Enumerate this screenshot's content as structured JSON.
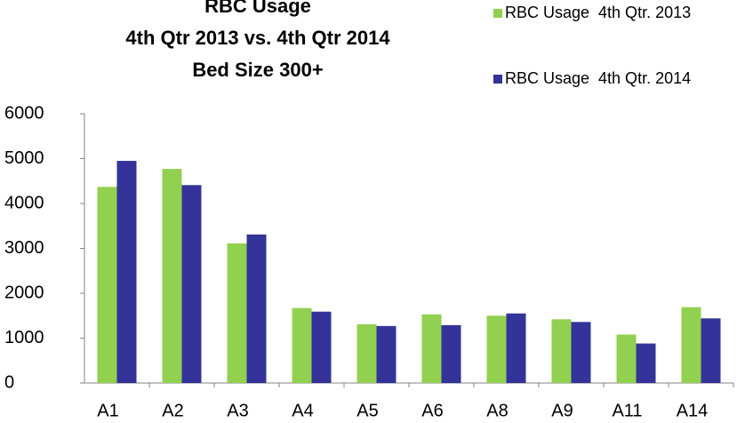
{
  "chart_data": {
    "type": "bar",
    "title": [
      "RBC Usage",
      "4th Qtr 2013 vs. 4th Qtr 2014",
      "Bed Size 300+"
    ],
    "categories": [
      "A1",
      "A2",
      "A3",
      "A4",
      "A5",
      "A6",
      "A8",
      "A9",
      "A11",
      "A14"
    ],
    "series": [
      {
        "name": "RBC Usage  4th Qtr. 2013",
        "color": "#92d050",
        "values": [
          4370,
          4770,
          3110,
          1670,
          1310,
          1530,
          1500,
          1420,
          1080,
          1690
        ]
      },
      {
        "name": "RBC Usage  4th Qtr. 2014",
        "color": "#333399",
        "values": [
          4950,
          4410,
          3310,
          1590,
          1270,
          1290,
          1550,
          1360,
          880,
          1440
        ]
      }
    ],
    "ylim": [
      0,
      6000
    ],
    "yticks": [
      0,
      1000,
      2000,
      3000,
      4000,
      5000,
      6000
    ],
    "grid": false,
    "legend": "top-right"
  }
}
